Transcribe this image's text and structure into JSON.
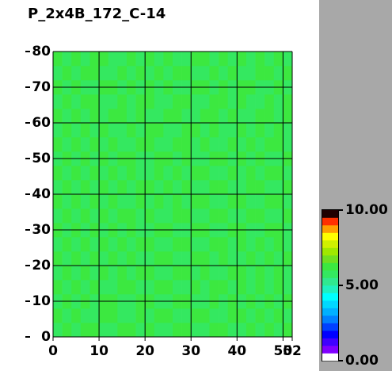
{
  "chart_data": {
    "type": "heatmap",
    "title": "P_2x4B_172_C-14",
    "xlim": [
      0,
      52
    ],
    "ylim": [
      0,
      80
    ],
    "xticks": [
      0,
      10,
      20,
      30,
      40,
      50,
      52
    ],
    "yticks": [
      0,
      10,
      20,
      30,
      40,
      50,
      60,
      70,
      80
    ],
    "grid": true,
    "grid_color": "#000000",
    "x_bins": [
      0,
      2,
      4,
      6,
      8,
      10,
      12,
      14,
      16,
      18,
      20,
      22,
      24,
      26,
      28,
      30,
      32,
      34,
      36,
      38,
      40,
      42,
      44,
      46,
      48,
      50,
      52
    ],
    "y_bins": [
      0,
      4,
      8,
      12,
      16,
      20,
      24,
      28,
      32,
      36,
      40,
      44,
      48,
      52,
      56,
      60,
      64,
      68,
      72,
      76,
      80
    ],
    "zlim": [
      0,
      10
    ],
    "zticks": [
      {
        "value": 0,
        "label": "0.00"
      },
      {
        "value": 5,
        "label": "5.00"
      },
      {
        "value": 10,
        "label": "10.00"
      }
    ],
    "colormap": [
      "#ffffff",
      "#8000ff",
      "#4000ff",
      "#0000ff",
      "#0040ff",
      "#0080ff",
      "#00b0ff",
      "#00d8ff",
      "#00ffff",
      "#20f0c0",
      "#30e890",
      "#34e860",
      "#3ce840",
      "#70e020",
      "#a0e800",
      "#d0f000",
      "#ffff00",
      "#ffa000",
      "#ff3000",
      "#200000"
    ],
    "z": [
      [
        5.9,
        6.1,
        5.8,
        6.0,
        6.2,
        5.7,
        5.9,
        6.0,
        6.3,
        5.8,
        6.1,
        5.9,
        5.7,
        6.0,
        6.1,
        5.8,
        5.9,
        6.2,
        6.0,
        5.7,
        5.9,
        6.1,
        5.8,
        6.0,
        5.9,
        6.1
      ],
      [
        6.0,
        5.8,
        6.2,
        5.9,
        5.7,
        6.1,
        6.0,
        5.8,
        5.9,
        6.2,
        5.7,
        6.0,
        6.1,
        5.9,
        5.8,
        6.0,
        6.2,
        5.7,
        5.9,
        6.1,
        6.0,
        5.8,
        6.2,
        5.9,
        6.0,
        5.8
      ],
      [
        5.7,
        6.0,
        5.9,
        6.1,
        5.8,
        6.0,
        6.2,
        5.9,
        5.7,
        6.0,
        6.1,
        5.8,
        5.9,
        6.2,
        6.0,
        5.7,
        5.9,
        6.1,
        5.8,
        6.0,
        5.7,
        6.0,
        5.9,
        6.1,
        5.8,
        6.0
      ],
      [
        6.1,
        5.9,
        6.0,
        5.7,
        6.0,
        5.9,
        5.8,
        6.1,
        6.0,
        5.7,
        5.9,
        6.2,
        6.0,
        5.8,
        5.9,
        6.1,
        5.7,
        6.0,
        6.2,
        5.8,
        6.0,
        5.9,
        6.1,
        5.7,
        6.0,
        5.9
      ],
      [
        5.8,
        6.2,
        5.7,
        6.0,
        5.9,
        6.1,
        5.8,
        6.0,
        5.7,
        6.1,
        6.0,
        5.9,
        5.8,
        6.0,
        6.2,
        5.9,
        6.0,
        5.8,
        5.7,
        6.0,
        6.1,
        5.9,
        6.0,
        5.8,
        6.2,
        5.7
      ],
      [
        6.0,
        5.7,
        6.1,
        5.9,
        6.0,
        5.8,
        6.2,
        5.7,
        6.0,
        5.9,
        5.8,
        6.1,
        6.0,
        5.7,
        5.9,
        6.0,
        6.1,
        5.9,
        6.0,
        5.8,
        5.7,
        6.1,
        5.9,
        6.0,
        5.8,
        6.1
      ],
      [
        5.9,
        6.0,
        5.8,
        6.2,
        5.7,
        6.0,
        5.9,
        6.1,
        5.8,
        6.0,
        6.2,
        5.7,
        5.9,
        6.1,
        6.0,
        5.8,
        5.9,
        6.0,
        6.2,
        5.7,
        6.0,
        5.8,
        6.1,
        5.9,
        6.0,
        5.7
      ],
      [
        6.2,
        5.8,
        6.0,
        5.9,
        6.1,
        5.7,
        6.0,
        5.9,
        6.0,
        5.8,
        5.9,
        6.0,
        6.2,
        5.8,
        5.7,
        6.1,
        6.0,
        5.9,
        5.8,
        6.0,
        6.1,
        5.7,
        5.9,
        6.0,
        6.1,
        5.8
      ],
      [
        5.8,
        6.0,
        5.9,
        6.0,
        5.8,
        6.2,
        5.7,
        6.0,
        6.1,
        5.9,
        6.0,
        5.8,
        5.7,
        6.0,
        6.1,
        5.9,
        5.8,
        6.2,
        6.0,
        5.9,
        5.8,
        6.0,
        6.0,
        5.7,
        5.9,
        6.2
      ],
      [
        6.0,
        5.9,
        6.1,
        5.7,
        6.0,
        5.9,
        6.1,
        5.8,
        5.9,
        6.2,
        5.7,
        6.0,
        5.9,
        6.1,
        5.8,
        6.0,
        6.2,
        5.7,
        5.9,
        6.0,
        6.1,
        5.8,
        5.7,
        6.0,
        6.0,
        5.9
      ],
      [
        5.7,
        6.1,
        5.9,
        6.0,
        5.8,
        6.0,
        5.9,
        6.2,
        5.7,
        6.0,
        6.1,
        5.9,
        6.0,
        5.8,
        6.0,
        5.7,
        5.9,
        6.1,
        6.0,
        5.8,
        5.9,
        6.2,
        6.0,
        5.9,
        5.7,
        6.0
      ],
      [
        6.1,
        5.8,
        6.0,
        5.9,
        6.2,
        5.7,
        6.0,
        5.9,
        6.0,
        5.8,
        5.9,
        6.1,
        5.7,
        6.0,
        5.9,
        6.2,
        6.0,
        5.8,
        5.9,
        6.1,
        5.7,
        6.0,
        5.8,
        6.1,
        6.0,
        5.9
      ],
      [
        5.9,
        6.0,
        5.7,
        6.1,
        5.9,
        6.0,
        5.8,
        6.0,
        6.2,
        5.9,
        5.7,
        6.0,
        6.1,
        5.8,
        6.0,
        5.9,
        5.7,
        6.0,
        6.1,
        5.9,
        6.0,
        5.8,
        6.2,
        5.9,
        5.8,
        6.0
      ],
      [
        6.0,
        5.9,
        6.2,
        5.8,
        6.0,
        5.7,
        6.1,
        5.9,
        5.8,
        6.0,
        6.1,
        5.7,
        5.9,
        6.0,
        6.2,
        5.8,
        6.0,
        5.9,
        5.7,
        6.0,
        5.9,
        6.1,
        5.8,
        6.0,
        6.1,
        5.7
      ],
      [
        5.8,
        6.1,
        5.9,
        6.0,
        5.7,
        6.0,
        5.9,
        5.8,
        6.1,
        5.9,
        6.0,
        6.2,
        5.8,
        5.9,
        6.0,
        6.1,
        5.7,
        6.0,
        5.9,
        5.8,
        6.2,
        5.9,
        6.0,
        5.7,
        6.0,
        5.9
      ],
      [
        6.1,
        5.9,
        6.0,
        5.8,
        6.1,
        5.9,
        6.0,
        6.2,
        5.7,
        6.0,
        5.8,
        5.9,
        6.1,
        6.0,
        5.7,
        5.9,
        6.0,
        6.1,
        5.8,
        6.0,
        5.9,
        5.7,
        6.1,
        6.0,
        5.8,
        6.0
      ],
      [
        5.9,
        6.0,
        5.8,
        6.1,
        6.0,
        5.8,
        5.7,
        6.0,
        5.9,
        6.1,
        6.0,
        5.8,
        5.9,
        6.2,
        6.0,
        5.9,
        5.8,
        6.0,
        6.1,
        5.7,
        6.0,
        5.9,
        5.8,
        6.1,
        5.9,
        6.0
      ],
      [
        6.0,
        5.7,
        6.1,
        5.9,
        5.8,
        6.0,
        6.1,
        5.9,
        6.0,
        5.8,
        6.2,
        5.9,
        6.0,
        5.7,
        5.9,
        6.0,
        6.1,
        5.8,
        6.0,
        5.9,
        6.1,
        6.0,
        5.7,
        5.9,
        6.0,
        5.8
      ],
      [
        5.8,
        6.0,
        5.9,
        6.0,
        6.1,
        5.9,
        5.8,
        6.0,
        5.7,
        6.0,
        5.9,
        6.1,
        5.8,
        6.0,
        6.1,
        5.7,
        5.9,
        6.0,
        5.8,
        6.2,
        5.9,
        5.8,
        6.0,
        6.1,
        5.7,
        6.0
      ],
      [
        6.0,
        5.9,
        6.1,
        5.8,
        6.0,
        6.2,
        5.9,
        5.7,
        6.0,
        5.9,
        6.0,
        5.8,
        6.1,
        5.9,
        5.8,
        6.0,
        6.0,
        5.9,
        6.1,
        5.8,
        6.0,
        5.9,
        6.1,
        5.8,
        6.0,
        5.9
      ]
    ]
  }
}
